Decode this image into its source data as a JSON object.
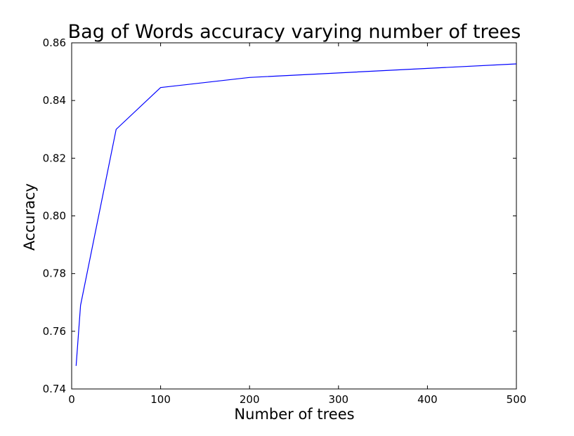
{
  "chart_data": {
    "type": "line",
    "title": "Bag of Words accuracy varying number of trees",
    "xlabel": "Number of trees",
    "ylabel": "Accuracy",
    "xlim": [
      0,
      500
    ],
    "ylim": [
      0.74,
      0.86
    ],
    "xticks": [
      0,
      100,
      200,
      300,
      400,
      500
    ],
    "xtick_labels": [
      "0",
      "100",
      "200",
      "300",
      "400",
      "500"
    ],
    "yticks": [
      0.74,
      0.76,
      0.78,
      0.8,
      0.82,
      0.84,
      0.86
    ],
    "ytick_labels": [
      "0.74",
      "0.76",
      "0.78",
      "0.80",
      "0.82",
      "0.84",
      "0.86"
    ],
    "grid": false,
    "series": [
      {
        "color": "#0000ff",
        "x": [
          5,
          10,
          50,
          100,
          200,
          500
        ],
        "y": [
          0.748,
          0.769,
          0.83,
          0.8445,
          0.848,
          0.8527
        ]
      }
    ]
  }
}
